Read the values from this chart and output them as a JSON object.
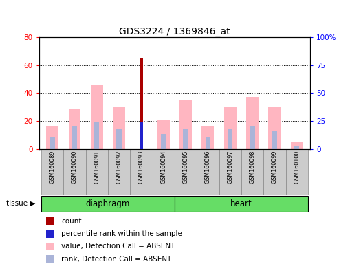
{
  "title": "GDS3224 / 1369846_at",
  "samples": [
    "GSM160089",
    "GSM160090",
    "GSM160091",
    "GSM160092",
    "GSM160093",
    "GSM160094",
    "GSM160095",
    "GSM160096",
    "GSM160097",
    "GSM160098",
    "GSM160099",
    "GSM160100"
  ],
  "value_absent": [
    16,
    29,
    46,
    30,
    0,
    21,
    35,
    16,
    30,
    37,
    30,
    5
  ],
  "rank_absent": [
    9,
    16,
    19,
    14,
    0,
    11,
    14,
    9,
    14,
    16,
    13,
    2
  ],
  "count": [
    0,
    0,
    0,
    0,
    65,
    0,
    0,
    0,
    0,
    0,
    0,
    0
  ],
  "percentile_rank": [
    0,
    0,
    0,
    0,
    24,
    0,
    0,
    0,
    0,
    0,
    0,
    0
  ],
  "count_color": "#aa0000",
  "percentile_color": "#2222cc",
  "value_absent_color": "#ffb6c1",
  "rank_absent_color": "#aab4d8",
  "ylim_left": [
    0,
    80
  ],
  "ylim_right": [
    0,
    100
  ],
  "yticks_left": [
    0,
    20,
    40,
    60,
    80
  ],
  "yticks_right": [
    0,
    25,
    50,
    75,
    100
  ],
  "diaphragm_label": "diaphragm",
  "heart_label": "heart",
  "tissue_label": "tissue",
  "legend_items": [
    {
      "color": "#aa0000",
      "label": "count"
    },
    {
      "color": "#2222cc",
      "label": "percentile rank within the sample"
    },
    {
      "color": "#ffb6c1",
      "label": "value, Detection Call = ABSENT"
    },
    {
      "color": "#aab4d8",
      "label": "rank, Detection Call = ABSENT"
    }
  ]
}
